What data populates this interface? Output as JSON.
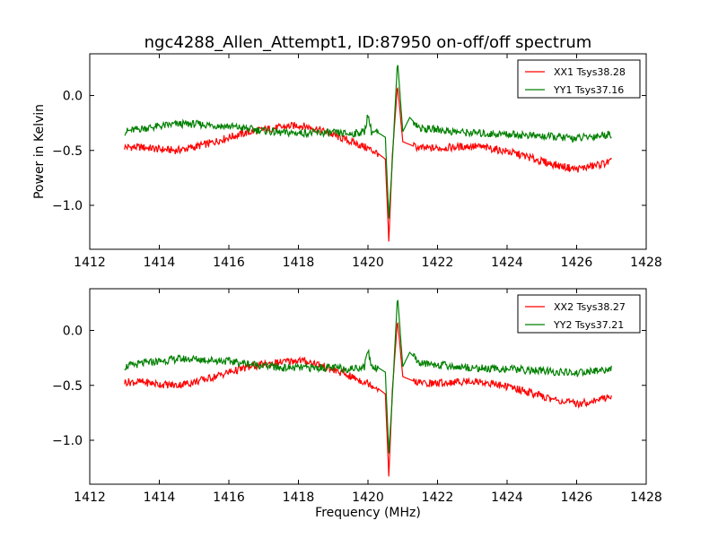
{
  "chart_data": {
    "type": "line",
    "title": "ngc4288_Allen_Attempt1, ID:87950 on-off/off spectrum",
    "xlabel": "Frequency (MHz)",
    "ylabel": "Power in Kelvin",
    "colors": {
      "red": "#ff0000",
      "green": "#008000"
    },
    "panels": [
      {
        "xlim": [
          1412,
          1428
        ],
        "ylim": [
          -1.4,
          0.38
        ],
        "xticks": [
          1412,
          1414,
          1416,
          1418,
          1420,
          1422,
          1424,
          1426,
          1428
        ],
        "yticks": [
          0.0,
          -0.5,
          -1.0
        ],
        "xtick_labels": [
          "1412",
          "1414",
          "1416",
          "1418",
          "1420",
          "1422",
          "1424",
          "1426",
          "1428"
        ],
        "ytick_labels": [
          "0.0",
          "−0.5",
          "−1.0"
        ],
        "legend_location": "upper right",
        "series": [
          {
            "name": "XX1 Tsys38.28",
            "color": "#ff0000",
            "x": [
              1413.0,
              1413.5,
              1414.0,
              1414.5,
              1415.0,
              1415.5,
              1416.0,
              1416.5,
              1417.0,
              1417.5,
              1418.0,
              1418.5,
              1419.0,
              1419.5,
              1420.0,
              1420.3,
              1420.5,
              1420.6,
              1420.7,
              1420.85,
              1421.0,
              1421.3,
              1421.5,
              1422.0,
              1422.5,
              1423.0,
              1423.5,
              1424.0,
              1424.5,
              1425.0,
              1425.5,
              1426.0,
              1426.5,
              1427.0
            ],
            "y": [
              -0.47,
              -0.47,
              -0.49,
              -0.5,
              -0.47,
              -0.43,
              -0.38,
              -0.34,
              -0.31,
              -0.29,
              -0.27,
              -0.3,
              -0.36,
              -0.42,
              -0.48,
              -0.53,
              -0.58,
              -1.33,
              -0.55,
              0.1,
              -0.42,
              -0.46,
              -0.48,
              -0.48,
              -0.47,
              -0.46,
              -0.48,
              -0.51,
              -0.55,
              -0.6,
              -0.64,
              -0.67,
              -0.64,
              -0.6
            ]
          },
          {
            "name": "YY1 Tsys37.16",
            "color": "#008000",
            "x": [
              1413.0,
              1413.5,
              1414.0,
              1414.5,
              1415.0,
              1415.5,
              1416.0,
              1416.5,
              1417.0,
              1417.5,
              1418.0,
              1418.5,
              1419.0,
              1419.5,
              1419.9,
              1420.0,
              1420.1,
              1420.3,
              1420.5,
              1420.6,
              1420.7,
              1420.85,
              1421.0,
              1421.2,
              1421.5,
              1422.0,
              1422.5,
              1423.0,
              1423.5,
              1424.0,
              1424.5,
              1425.0,
              1425.5,
              1426.0,
              1426.5,
              1427.0
            ],
            "y": [
              -0.33,
              -0.3,
              -0.28,
              -0.26,
              -0.26,
              -0.27,
              -0.28,
              -0.3,
              -0.32,
              -0.34,
              -0.34,
              -0.34,
              -0.34,
              -0.35,
              -0.33,
              -0.17,
              -0.33,
              -0.34,
              -0.38,
              -1.12,
              -0.6,
              0.32,
              -0.33,
              -0.2,
              -0.3,
              -0.31,
              -0.33,
              -0.34,
              -0.35,
              -0.35,
              -0.36,
              -0.37,
              -0.38,
              -0.39,
              -0.37,
              -0.35
            ]
          }
        ]
      },
      {
        "xlim": [
          1412,
          1428
        ],
        "ylim": [
          -1.4,
          0.38
        ],
        "xticks": [
          1412,
          1414,
          1416,
          1418,
          1420,
          1422,
          1424,
          1426,
          1428
        ],
        "yticks": [
          0.0,
          -0.5,
          -1.0
        ],
        "xtick_labels": [
          "1412",
          "1414",
          "1416",
          "1418",
          "1420",
          "1422",
          "1424",
          "1426",
          "1428"
        ],
        "ytick_labels": [
          "0.0",
          "−0.5",
          "−1.0"
        ],
        "legend_location": "upper right",
        "series": [
          {
            "name": "XX2 Tsys38.27",
            "color": "#ff0000",
            "x": [
              1413.0,
              1413.5,
              1414.0,
              1414.5,
              1415.0,
              1415.5,
              1416.0,
              1416.5,
              1417.0,
              1417.5,
              1418.0,
              1418.5,
              1419.0,
              1419.5,
              1420.0,
              1420.3,
              1420.5,
              1420.6,
              1420.7,
              1420.85,
              1421.0,
              1421.3,
              1421.5,
              1422.0,
              1422.5,
              1423.0,
              1423.5,
              1424.0,
              1424.5,
              1425.0,
              1425.5,
              1426.0,
              1426.5,
              1427.0
            ],
            "y": [
              -0.47,
              -0.47,
              -0.49,
              -0.5,
              -0.47,
              -0.43,
              -0.38,
              -0.34,
              -0.31,
              -0.29,
              -0.27,
              -0.3,
              -0.36,
              -0.42,
              -0.48,
              -0.53,
              -0.58,
              -1.33,
              -0.55,
              0.1,
              -0.42,
              -0.46,
              -0.48,
              -0.48,
              -0.47,
              -0.46,
              -0.48,
              -0.51,
              -0.55,
              -0.6,
              -0.64,
              -0.67,
              -0.64,
              -0.6
            ]
          },
          {
            "name": "YY2 Tsys37.21",
            "color": "#008000",
            "x": [
              1413.0,
              1413.5,
              1414.0,
              1414.5,
              1415.0,
              1415.5,
              1416.0,
              1416.5,
              1417.0,
              1417.5,
              1418.0,
              1418.5,
              1419.0,
              1419.5,
              1419.9,
              1420.0,
              1420.1,
              1420.3,
              1420.5,
              1420.6,
              1420.7,
              1420.85,
              1421.0,
              1421.2,
              1421.5,
              1422.0,
              1422.5,
              1423.0,
              1423.5,
              1424.0,
              1424.5,
              1425.0,
              1425.5,
              1426.0,
              1426.5,
              1427.0
            ],
            "y": [
              -0.33,
              -0.3,
              -0.28,
              -0.26,
              -0.26,
              -0.27,
              -0.28,
              -0.3,
              -0.32,
              -0.34,
              -0.34,
              -0.34,
              -0.34,
              -0.35,
              -0.33,
              -0.17,
              -0.33,
              -0.34,
              -0.38,
              -1.12,
              -0.6,
              0.32,
              -0.33,
              -0.2,
              -0.3,
              -0.31,
              -0.33,
              -0.34,
              -0.35,
              -0.35,
              -0.36,
              -0.37,
              -0.38,
              -0.39,
              -0.37,
              -0.35
            ]
          }
        ]
      }
    ]
  }
}
